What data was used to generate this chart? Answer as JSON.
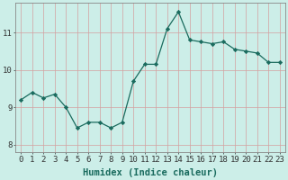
{
  "x": [
    0,
    1,
    2,
    3,
    4,
    5,
    6,
    7,
    8,
    9,
    10,
    11,
    12,
    13,
    14,
    15,
    16,
    17,
    18,
    19,
    20,
    21,
    22,
    23
  ],
  "y": [
    9.2,
    9.4,
    9.25,
    9.35,
    9.0,
    8.45,
    8.6,
    8.6,
    8.45,
    8.6,
    9.7,
    10.15,
    10.15,
    11.1,
    11.55,
    10.8,
    10.75,
    10.7,
    10.75,
    10.55,
    10.5,
    10.45,
    10.2,
    10.2
  ],
  "xlabel": "Humidex (Indice chaleur)",
  "ylim": [
    7.8,
    11.8
  ],
  "xlim": [
    -0.5,
    23.5
  ],
  "line_color": "#1a6b5e",
  "marker": "D",
  "marker_size": 2.2,
  "bg_color": "#cceee8",
  "grid_color": "#d4a0a0",
  "ytick_values": [
    8,
    9,
    10,
    11
  ],
  "xlabel_fontsize": 7.5,
  "tick_fontsize": 6.5
}
